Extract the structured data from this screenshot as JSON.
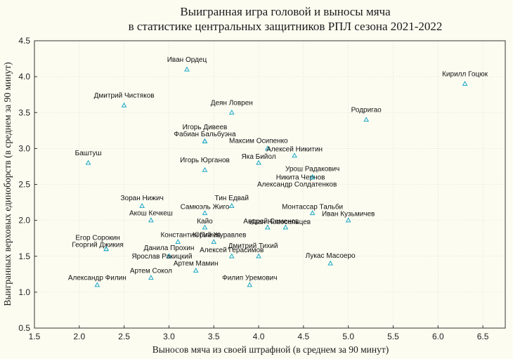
{
  "chart_data": {
    "type": "scatter",
    "title_lines": [
      "Выигранная игра головой и выносы мяча",
      "в статистике центральных защитников РПЛ сезона 2021-2022"
    ],
    "xlabel": "Выносов мяча из своей штрафной (в среднем за 90 минут)",
    "ylabel": "Выигранных верховых единоборств (в среднем за 90 минут)",
    "xlim": [
      1.5,
      6.75
    ],
    "ylim": [
      0.5,
      4.5
    ],
    "xticks": [
      1.5,
      2.0,
      2.5,
      3.0,
      3.5,
      4.0,
      4.5,
      5.0,
      5.5,
      6.0,
      6.5
    ],
    "yticks": [
      0.5,
      1.0,
      1.5,
      2.0,
      2.5,
      3.0,
      3.5,
      4.0,
      4.5
    ],
    "grid": true,
    "marker_color": "#1aa8c8",
    "points": [
      {
        "name": "Иван Ордец",
        "x": 3.2,
        "y": 4.1
      },
      {
        "name": "Кирилл Гоцюк",
        "x": 6.3,
        "y": 3.9
      },
      {
        "name": "Дмитрий Чистяков",
        "x": 2.5,
        "y": 3.6
      },
      {
        "name": "Деян Ловрен",
        "x": 3.7,
        "y": 3.5
      },
      {
        "name": "Родригао",
        "x": 5.2,
        "y": 3.4
      },
      {
        "name": "Игорь Дивеев",
        "x": 3.4,
        "y": 3.1
      },
      {
        "name": "Фабиан Бальбуэна",
        "x": 3.4,
        "y": 3.1
      },
      {
        "name": "Максим Осипенко",
        "x": 4.1,
        "y": 3.0
      },
      {
        "name": "Алексей Никитин",
        "x": 4.4,
        "y": 2.9
      },
      {
        "name": "Яка Бийол",
        "x": 4.0,
        "y": 2.8
      },
      {
        "name": "Баштуш",
        "x": 2.1,
        "y": 2.8
      },
      {
        "name": "Игорь Юрганов",
        "x": 3.4,
        "y": 2.7
      },
      {
        "name": "Урош Радакович",
        "x": 4.6,
        "y": 2.6
      },
      {
        "name": "Никита Чернов",
        "x": 4.6,
        "y": 2.6
      },
      {
        "name": "Александр Солдатенков",
        "x": 4.6,
        "y": 2.6
      },
      {
        "name": "Зоран Нижич",
        "x": 2.7,
        "y": 2.2
      },
      {
        "name": "Тин Едвай",
        "x": 3.7,
        "y": 2.2
      },
      {
        "name": "Самюэль Жиго",
        "x": 3.4,
        "y": 2.1
      },
      {
        "name": "Монтассар Тальби",
        "x": 4.6,
        "y": 2.1
      },
      {
        "name": "Акош Кечкеш",
        "x": 2.8,
        "y": 2.0
      },
      {
        "name": "Иван Новосельцев",
        "x": 4.3,
        "y": 1.9
      },
      {
        "name": "Иван Кузьмичев",
        "x": 5.0,
        "y": 2.0
      },
      {
        "name": "Андрей Семенов",
        "x": 4.1,
        "y": 1.9
      },
      {
        "name": "Кайо",
        "x": 3.4,
        "y": 1.9
      },
      {
        "name": "Юрий Журавлев",
        "x": 3.5,
        "y": 1.7
      },
      {
        "name": "Егор Сорокин",
        "x": 2.3,
        "y": 1.6
      },
      {
        "name": "Георгий Джикия",
        "x": 2.3,
        "y": 1.6
      },
      {
        "name": "Константин Плиев",
        "x": 3.1,
        "y": 1.7
      },
      {
        "name": "Данила Прохин",
        "x": 3.0,
        "y": 1.5
      },
      {
        "name": "Ярослав Ракицкий",
        "x": 3.0,
        "y": 1.5
      },
      {
        "name": "Дмитрий Тихий",
        "x": 4.0,
        "y": 1.5
      },
      {
        "name": "Алексей Герасимов",
        "x": 3.7,
        "y": 1.5
      },
      {
        "name": "Лукас Масоеро",
        "x": 4.8,
        "y": 1.4
      },
      {
        "name": "Артем Мамин",
        "x": 3.3,
        "y": 1.3
      },
      {
        "name": "Артем Сокол",
        "x": 2.8,
        "y": 1.2
      },
      {
        "name": "Александр Филин",
        "x": 2.2,
        "y": 1.1
      },
      {
        "name": "Филип Уремович",
        "x": 3.9,
        "y": 1.1
      }
    ]
  }
}
